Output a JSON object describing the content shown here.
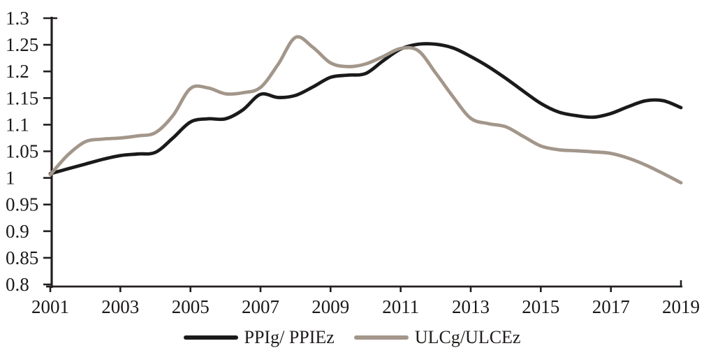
{
  "chart_data": {
    "type": "line",
    "title": "",
    "xlabel": "",
    "ylabel": "",
    "xlim": [
      2001,
      2019
    ],
    "ylim": [
      0.8,
      1.3
    ],
    "grid": false,
    "legend_position": "bottom",
    "axis_color": "#231f20",
    "text_color": "#1b1918",
    "x_ticks": [
      2001,
      2003,
      2005,
      2007,
      2009,
      2011,
      2013,
      2015,
      2017,
      2019
    ],
    "x_tick_labels": [
      "2001",
      "2003",
      "2005",
      "2007",
      "2009",
      "2011",
      "2013",
      "2015",
      "2017",
      "2019"
    ],
    "y_ticks": [
      1.3,
      1.25,
      1.2,
      1.15,
      1.1,
      1.05,
      1,
      0.95,
      0.9,
      0.85,
      0.8
    ],
    "y_tick_labels": [
      "1.3",
      "1.25",
      "1.2",
      "1.15",
      "1.1",
      "1.05",
      "1",
      "0.95",
      "0.9",
      "0.85",
      "0.8"
    ],
    "series": [
      {
        "name": "PPIg/ PPIEz",
        "color": "#1a1a1a",
        "points": [
          [
            2001,
            1.008
          ],
          [
            2001.5,
            1.017
          ],
          [
            2002,
            1.026
          ],
          [
            2002.5,
            1.035
          ],
          [
            2003,
            1.042
          ],
          [
            2003.5,
            1.045
          ],
          [
            2004,
            1.048
          ],
          [
            2004.5,
            1.075
          ],
          [
            2005,
            1.105
          ],
          [
            2005.5,
            1.111
          ],
          [
            2006,
            1.111
          ],
          [
            2006.5,
            1.128
          ],
          [
            2007,
            1.157
          ],
          [
            2007.5,
            1.151
          ],
          [
            2008,
            1.155
          ],
          [
            2008.5,
            1.171
          ],
          [
            2009,
            1.189
          ],
          [
            2009.5,
            1.193
          ],
          [
            2010,
            1.196
          ],
          [
            2010.5,
            1.22
          ],
          [
            2011,
            1.242
          ],
          [
            2011.5,
            1.251
          ],
          [
            2012,
            1.251
          ],
          [
            2012.5,
            1.244
          ],
          [
            2013,
            1.228
          ],
          [
            2013.5,
            1.209
          ],
          [
            2014,
            1.187
          ],
          [
            2014.5,
            1.163
          ],
          [
            2015,
            1.14
          ],
          [
            2015.5,
            1.124
          ],
          [
            2016,
            1.117
          ],
          [
            2016.5,
            1.114
          ],
          [
            2017,
            1.121
          ],
          [
            2017.5,
            1.134
          ],
          [
            2018,
            1.145
          ],
          [
            2018.5,
            1.145
          ],
          [
            2019,
            1.132
          ]
        ]
      },
      {
        "name": "ULCg/ULCEz",
        "color": "#a3968a",
        "points": [
          [
            2001,
            1.006
          ],
          [
            2001.5,
            1.043
          ],
          [
            2002,
            1.068
          ],
          [
            2002.5,
            1.073
          ],
          [
            2003,
            1.075
          ],
          [
            2003.5,
            1.079
          ],
          [
            2004,
            1.085
          ],
          [
            2004.5,
            1.117
          ],
          [
            2005,
            1.168
          ],
          [
            2005.5,
            1.169
          ],
          [
            2006,
            1.158
          ],
          [
            2006.5,
            1.16
          ],
          [
            2007,
            1.17
          ],
          [
            2007.5,
            1.213
          ],
          [
            2008,
            1.264
          ],
          [
            2008.5,
            1.245
          ],
          [
            2009,
            1.216
          ],
          [
            2009.5,
            1.209
          ],
          [
            2010,
            1.214
          ],
          [
            2010.5,
            1.228
          ],
          [
            2011,
            1.243
          ],
          [
            2011.5,
            1.239
          ],
          [
            2012,
            1.197
          ],
          [
            2012.5,
            1.152
          ],
          [
            2013,
            1.112
          ],
          [
            2013.5,
            1.102
          ],
          [
            2014,
            1.096
          ],
          [
            2014.5,
            1.078
          ],
          [
            2015,
            1.06
          ],
          [
            2015.5,
            1.053
          ],
          [
            2016,
            1.051
          ],
          [
            2016.5,
            1.049
          ],
          [
            2017,
            1.046
          ],
          [
            2017.5,
            1.037
          ],
          [
            2018,
            1.024
          ],
          [
            2018.5,
            1.008
          ],
          [
            2019,
            0.991
          ]
        ]
      }
    ]
  }
}
